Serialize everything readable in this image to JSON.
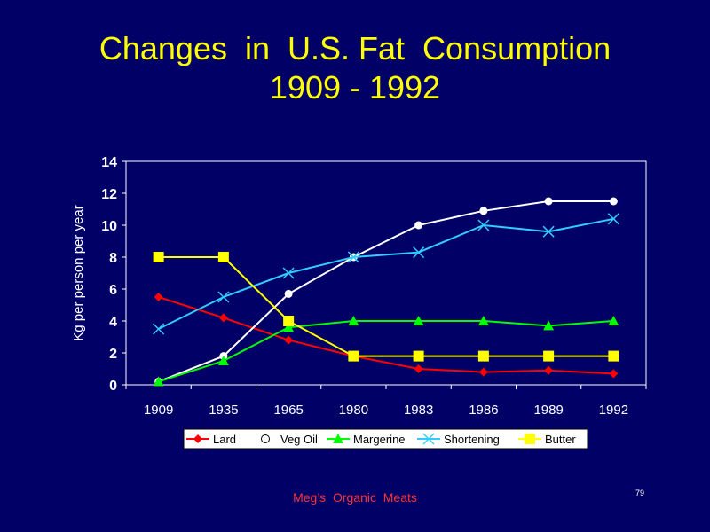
{
  "slide": {
    "title_line1": "Changes  in  U.S. Fat  Consumption",
    "title_line2": "1909 - 1992",
    "footer": "Meg’s  Organic  Meats",
    "page_number": "79"
  },
  "chart_data": {
    "type": "line",
    "categories": [
      "1909",
      "1935",
      "1965",
      "1980",
      "1983",
      "1986",
      "1989",
      "1992"
    ],
    "ylabel": "Kg per person per year",
    "xlabel": "",
    "ylim": [
      0,
      14
    ],
    "yticks": [
      0,
      2,
      4,
      6,
      8,
      10,
      12,
      14
    ],
    "grid": false,
    "legend_position": "bottom",
    "series": [
      {
        "name": "Lard",
        "color": "#ff0000",
        "marker": "diamond",
        "values": [
          5.5,
          4.2,
          2.8,
          1.8,
          1.0,
          0.8,
          0.9,
          0.7
        ]
      },
      {
        "name": "Veg Oil",
        "color": "#ffffff",
        "marker": "circle",
        "values": [
          0.2,
          1.8,
          5.7,
          8.0,
          10.0,
          10.9,
          11.5,
          11.5
        ]
      },
      {
        "name": "Margerine",
        "color": "#00ff00",
        "marker": "triangle",
        "values": [
          0.2,
          1.5,
          3.6,
          4.0,
          4.0,
          4.0,
          3.7,
          4.0
        ]
      },
      {
        "name": "Shortening",
        "color": "#33ccff",
        "marker": "x",
        "values": [
          3.5,
          5.5,
          7.0,
          8.0,
          8.3,
          10.0,
          9.6,
          10.4
        ]
      },
      {
        "name": "Butter",
        "color": "#ffff00",
        "marker": "square",
        "values": [
          8.0,
          8.0,
          4.0,
          1.8,
          1.8,
          1.8,
          1.8,
          1.8
        ]
      }
    ]
  }
}
